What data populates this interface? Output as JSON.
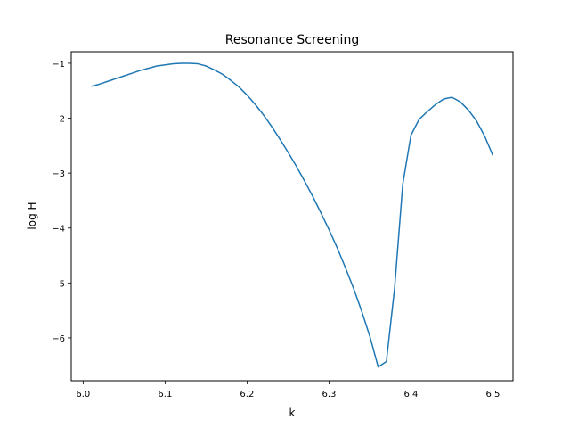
{
  "chart_data": {
    "type": "line",
    "title": "Resonance Screening",
    "xlabel": "k",
    "ylabel": "log H",
    "xlim": [
      5.9855,
      6.5245
    ],
    "ylim": [
      -6.78,
      -0.79
    ],
    "xticks": [
      6.0,
      6.1,
      6.2,
      6.3,
      6.4,
      6.5
    ],
    "xtick_labels": [
      "6.0",
      "6.1",
      "6.2",
      "6.3",
      "6.4",
      "6.5"
    ],
    "yticks": [
      -1,
      -2,
      -3,
      -4,
      -5,
      -6
    ],
    "ytick_labels": [
      "−1",
      "−2",
      "−3",
      "−4",
      "−5",
      "−6"
    ],
    "grid": false,
    "series": [
      {
        "color": "#1f77b4",
        "x": [
          6.01,
          6.02,
          6.03,
          6.04,
          6.05,
          6.06,
          6.07,
          6.08,
          6.09,
          6.1,
          6.11,
          6.12,
          6.13,
          6.14,
          6.15,
          6.16,
          6.17,
          6.18,
          6.19,
          6.2,
          6.21,
          6.22,
          6.23,
          6.24,
          6.25,
          6.26,
          6.27,
          6.28,
          6.29,
          6.3,
          6.31,
          6.32,
          6.33,
          6.34,
          6.35,
          6.36,
          6.37,
          6.38,
          6.39,
          6.4,
          6.41,
          6.42,
          6.43,
          6.44,
          6.45,
          6.46,
          6.47,
          6.48,
          6.49,
          6.5
        ],
        "y": [
          -1.42,
          -1.38,
          -1.33,
          -1.28,
          -1.23,
          -1.18,
          -1.13,
          -1.09,
          -1.05,
          -1.03,
          -1.01,
          -1.0,
          -1.0,
          -1.01,
          -1.05,
          -1.12,
          -1.2,
          -1.31,
          -1.43,
          -1.58,
          -1.75,
          -1.94,
          -2.15,
          -2.38,
          -2.62,
          -2.87,
          -3.14,
          -3.42,
          -3.72,
          -4.03,
          -4.36,
          -4.72,
          -5.1,
          -5.52,
          -5.98,
          -6.53,
          -6.43,
          -5.1,
          -3.2,
          -2.31,
          -2.02,
          -1.88,
          -1.75,
          -1.65,
          -1.62,
          -1.7,
          -1.85,
          -2.05,
          -2.33,
          -2.68
        ]
      }
    ]
  }
}
